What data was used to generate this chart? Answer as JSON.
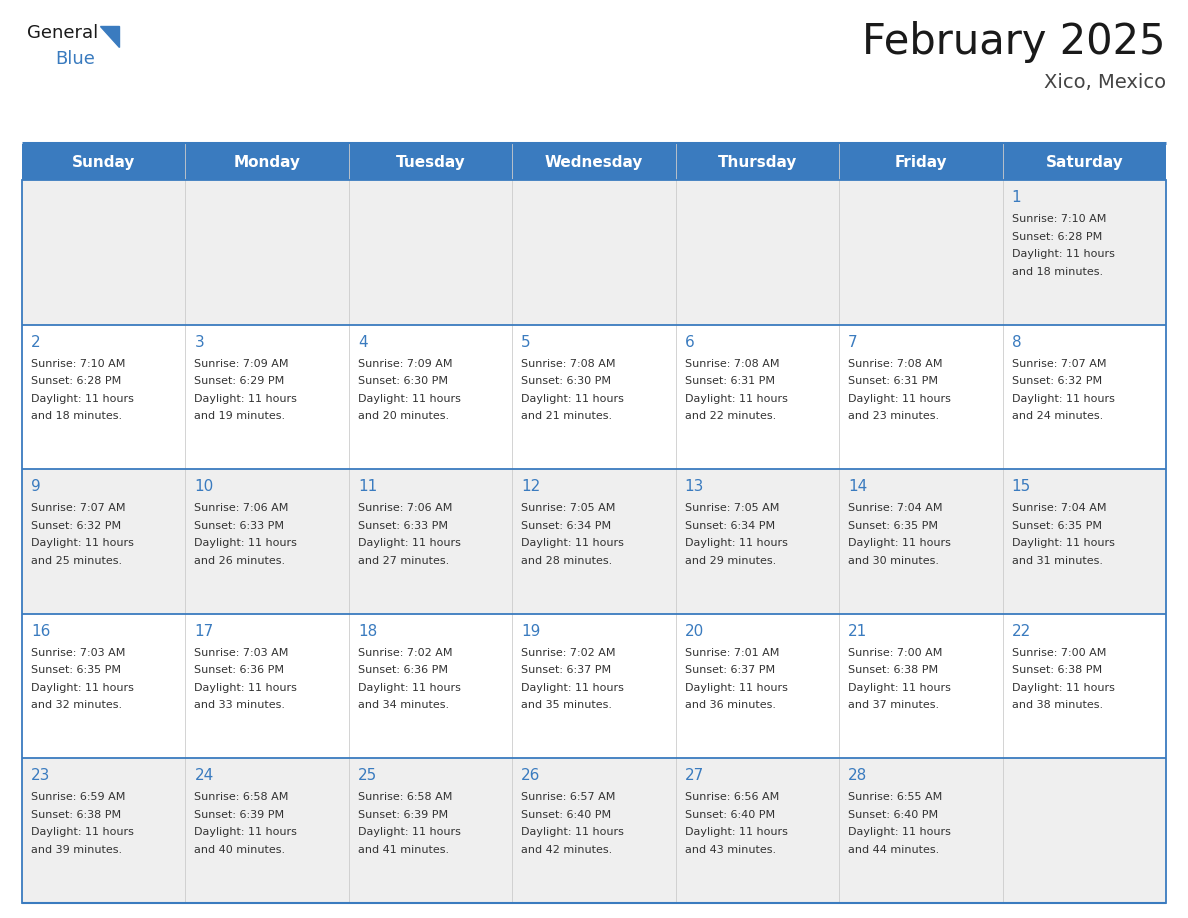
{
  "title": "February 2025",
  "subtitle": "Xico, Mexico",
  "header_bg_color": "#3a7bbf",
  "header_text_color": "#ffffff",
  "day_names": [
    "Sunday",
    "Monday",
    "Tuesday",
    "Wednesday",
    "Thursday",
    "Friday",
    "Saturday"
  ],
  "row1_bg": "#efefef",
  "row2_bg": "#ffffff",
  "border_color": "#3a7bbf",
  "date_color": "#3a7bbf",
  "info_color": "#333333",
  "days": [
    {
      "day": 1,
      "col": 6,
      "row": 0,
      "sunrise": "7:10 AM",
      "sunset": "6:28 PM",
      "daylight": "11 hours and 18 minutes."
    },
    {
      "day": 2,
      "col": 0,
      "row": 1,
      "sunrise": "7:10 AM",
      "sunset": "6:28 PM",
      "daylight": "11 hours and 18 minutes."
    },
    {
      "day": 3,
      "col": 1,
      "row": 1,
      "sunrise": "7:09 AM",
      "sunset": "6:29 PM",
      "daylight": "11 hours and 19 minutes."
    },
    {
      "day": 4,
      "col": 2,
      "row": 1,
      "sunrise": "7:09 AM",
      "sunset": "6:30 PM",
      "daylight": "11 hours and 20 minutes."
    },
    {
      "day": 5,
      "col": 3,
      "row": 1,
      "sunrise": "7:08 AM",
      "sunset": "6:30 PM",
      "daylight": "11 hours and 21 minutes."
    },
    {
      "day": 6,
      "col": 4,
      "row": 1,
      "sunrise": "7:08 AM",
      "sunset": "6:31 PM",
      "daylight": "11 hours and 22 minutes."
    },
    {
      "day": 7,
      "col": 5,
      "row": 1,
      "sunrise": "7:08 AM",
      "sunset": "6:31 PM",
      "daylight": "11 hours and 23 minutes."
    },
    {
      "day": 8,
      "col": 6,
      "row": 1,
      "sunrise": "7:07 AM",
      "sunset": "6:32 PM",
      "daylight": "11 hours and 24 minutes."
    },
    {
      "day": 9,
      "col": 0,
      "row": 2,
      "sunrise": "7:07 AM",
      "sunset": "6:32 PM",
      "daylight": "11 hours and 25 minutes."
    },
    {
      "day": 10,
      "col": 1,
      "row": 2,
      "sunrise": "7:06 AM",
      "sunset": "6:33 PM",
      "daylight": "11 hours and 26 minutes."
    },
    {
      "day": 11,
      "col": 2,
      "row": 2,
      "sunrise": "7:06 AM",
      "sunset": "6:33 PM",
      "daylight": "11 hours and 27 minutes."
    },
    {
      "day": 12,
      "col": 3,
      "row": 2,
      "sunrise": "7:05 AM",
      "sunset": "6:34 PM",
      "daylight": "11 hours and 28 minutes."
    },
    {
      "day": 13,
      "col": 4,
      "row": 2,
      "sunrise": "7:05 AM",
      "sunset": "6:34 PM",
      "daylight": "11 hours and 29 minutes."
    },
    {
      "day": 14,
      "col": 5,
      "row": 2,
      "sunrise": "7:04 AM",
      "sunset": "6:35 PM",
      "daylight": "11 hours and 30 minutes."
    },
    {
      "day": 15,
      "col": 6,
      "row": 2,
      "sunrise": "7:04 AM",
      "sunset": "6:35 PM",
      "daylight": "11 hours and 31 minutes."
    },
    {
      "day": 16,
      "col": 0,
      "row": 3,
      "sunrise": "7:03 AM",
      "sunset": "6:35 PM",
      "daylight": "11 hours and 32 minutes."
    },
    {
      "day": 17,
      "col": 1,
      "row": 3,
      "sunrise": "7:03 AM",
      "sunset": "6:36 PM",
      "daylight": "11 hours and 33 minutes."
    },
    {
      "day": 18,
      "col": 2,
      "row": 3,
      "sunrise": "7:02 AM",
      "sunset": "6:36 PM",
      "daylight": "11 hours and 34 minutes."
    },
    {
      "day": 19,
      "col": 3,
      "row": 3,
      "sunrise": "7:02 AM",
      "sunset": "6:37 PM",
      "daylight": "11 hours and 35 minutes."
    },
    {
      "day": 20,
      "col": 4,
      "row": 3,
      "sunrise": "7:01 AM",
      "sunset": "6:37 PM",
      "daylight": "11 hours and 36 minutes."
    },
    {
      "day": 21,
      "col": 5,
      "row": 3,
      "sunrise": "7:00 AM",
      "sunset": "6:38 PM",
      "daylight": "11 hours and 37 minutes."
    },
    {
      "day": 22,
      "col": 6,
      "row": 3,
      "sunrise": "7:00 AM",
      "sunset": "6:38 PM",
      "daylight": "11 hours and 38 minutes."
    },
    {
      "day": 23,
      "col": 0,
      "row": 4,
      "sunrise": "6:59 AM",
      "sunset": "6:38 PM",
      "daylight": "11 hours and 39 minutes."
    },
    {
      "day": 24,
      "col": 1,
      "row": 4,
      "sunrise": "6:58 AM",
      "sunset": "6:39 PM",
      "daylight": "11 hours and 40 minutes."
    },
    {
      "day": 25,
      "col": 2,
      "row": 4,
      "sunrise": "6:58 AM",
      "sunset": "6:39 PM",
      "daylight": "11 hours and 41 minutes."
    },
    {
      "day": 26,
      "col": 3,
      "row": 4,
      "sunrise": "6:57 AM",
      "sunset": "6:40 PM",
      "daylight": "11 hours and 42 minutes."
    },
    {
      "day": 27,
      "col": 4,
      "row": 4,
      "sunrise": "6:56 AM",
      "sunset": "6:40 PM",
      "daylight": "11 hours and 43 minutes."
    },
    {
      "day": 28,
      "col": 5,
      "row": 4,
      "sunrise": "6:55 AM",
      "sunset": "6:40 PM",
      "daylight": "11 hours and 44 minutes."
    }
  ],
  "n_rows": 5,
  "logo_text_general": "General",
  "logo_text_blue": "Blue",
  "logo_triangle_color": "#3a7bbf",
  "logo_general_color": "#1a1a1a",
  "logo_blue_color": "#3a7bbf",
  "title_fontsize": 30,
  "subtitle_fontsize": 14,
  "header_fontsize": 11,
  "day_num_fontsize": 11,
  "info_fontsize": 8
}
